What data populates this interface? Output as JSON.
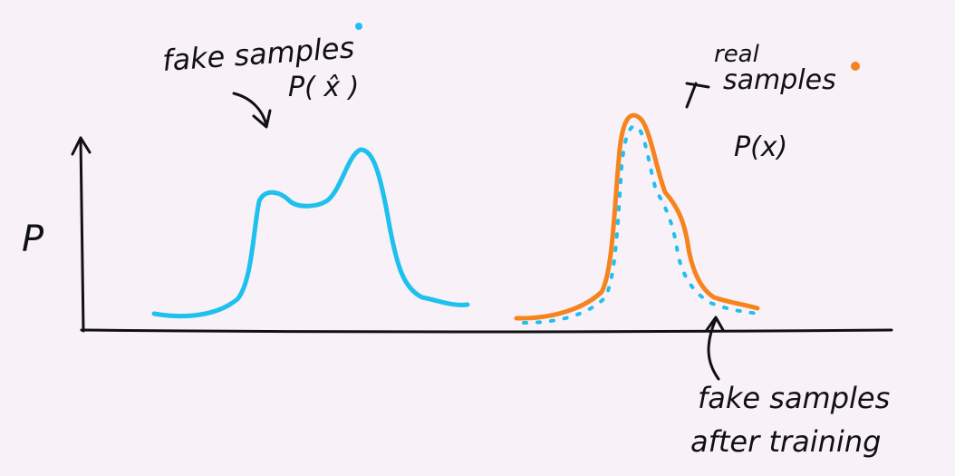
{
  "colors": {
    "background": "#f8f1f7",
    "ink": "#111111",
    "fake": "#1ec0ee",
    "real": "#f5841f"
  },
  "axis": {
    "y_label": "P"
  },
  "labels": {
    "fake_samples": "fake samples",
    "fake_dist": "P( x̂ )",
    "real_samples_line1": "real",
    "real_samples_line2": "samples",
    "real_dist": "P(x)",
    "after_training_line1": "fake samples",
    "after_training_line2": "after training"
  },
  "legend_markers": {
    "fake_marker": "fake",
    "real_marker": "real"
  }
}
